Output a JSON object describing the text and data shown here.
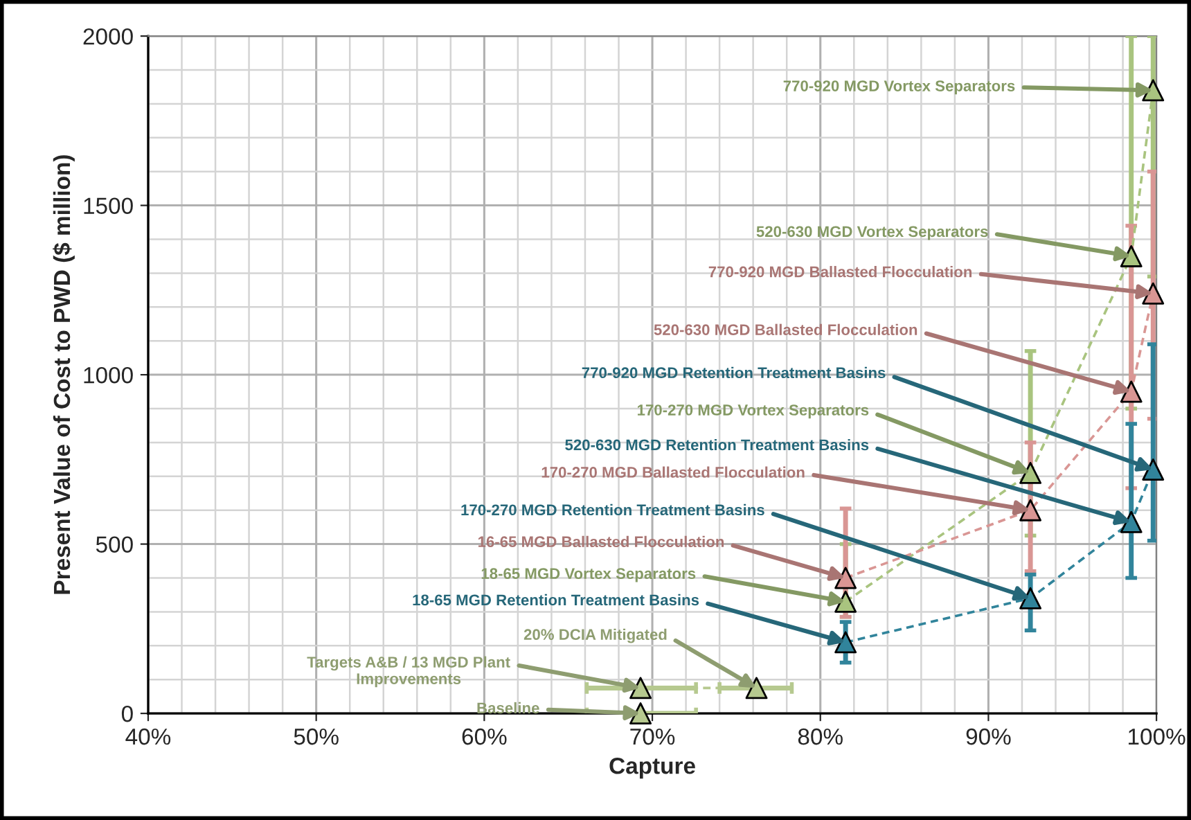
{
  "chart_data": {
    "type": "line",
    "xlabel": "Capture",
    "ylabel": "Present Value of Cost to PWD ($ million)",
    "xlim": [
      40,
      100
    ],
    "ylim": [
      0,
      2000
    ],
    "xticks": [
      {
        "value": 40,
        "label": "40%"
      },
      {
        "value": 50,
        "label": "50%"
      },
      {
        "value": 60,
        "label": "60%"
      },
      {
        "value": 70,
        "label": "70%"
      },
      {
        "value": 80,
        "label": "80%"
      },
      {
        "value": 90,
        "label": "90%"
      },
      {
        "value": 100,
        "label": "100%"
      }
    ],
    "yticks": [
      0,
      500,
      1000,
      1500,
      2000
    ],
    "grid": true,
    "marker": "triangle",
    "line_style": "dashed",
    "series": [
      {
        "type": "scatter",
        "color": "#b6c98f",
        "x": [
          69.3
        ],
        "values": [
          0
        ],
        "xerrors": [
          [
            66.1,
            72.6
          ]
        ]
      },
      {
        "type": "line",
        "color": "#b6c98f",
        "x": [
          69.3,
          76.2
        ],
        "values": [
          75,
          75
        ],
        "xerrors": [
          [
            66.1,
            72.6
          ],
          [
            74.0,
            78.3
          ]
        ]
      },
      {
        "color": "#a9c47f",
        "x": [
          81.5,
          92.5,
          98.5,
          99.8
        ],
        "values": [
          330,
          710,
          1350,
          1840
        ],
        "errors": [
          [
            285,
            500
          ],
          [
            525,
            1070
          ],
          [
            900,
            2000
          ],
          [
            1290,
            2000
          ]
        ]
      },
      {
        "color": "#d99694",
        "x": [
          81.5,
          92.5,
          98.5,
          99.8
        ],
        "values": [
          400,
          600,
          950,
          1240
        ],
        "errors": [
          [
            285,
            605
          ],
          [
            420,
            800
          ],
          [
            665,
            1440
          ],
          [
            870,
            1600
          ]
        ]
      },
      {
        "color": "#31849b",
        "x": [
          81.5,
          92.5,
          98.5,
          99.8
        ],
        "values": [
          210,
          340,
          565,
          720
        ],
        "errors": [
          [
            150,
            270
          ],
          [
            245,
            410
          ],
          [
            400,
            855
          ],
          [
            510,
            1090
          ]
        ]
      }
    ],
    "annotations": [
      {
        "text": "770-920 MGD Vortex Separators",
        "x": 99.8,
        "y": 1840
      },
      {
        "text": "520-630 MGD Vortex Separators",
        "x": 98.5,
        "y": 1350
      },
      {
        "text": "770-920 MGD Ballasted Flocculation",
        "x": 99.8,
        "y": 1240
      },
      {
        "text": "520-630 MGD Ballasted Flocculation",
        "x": 98.5,
        "y": 950
      },
      {
        "text": "770-920 MGD Retention Treatment Basins",
        "x": 99.8,
        "y": 720
      },
      {
        "text": "170-270 MGD Vortex Separators",
        "x": 92.5,
        "y": 710
      },
      {
        "text": "520-630 MGD Retention Treatment Basins",
        "x": 98.5,
        "y": 565
      },
      {
        "text": "170-270 MGD Ballasted Flocculation",
        "x": 92.5,
        "y": 600
      },
      {
        "text": "170-270 MGD Retention Treatment Basins",
        "x": 92.5,
        "y": 340
      },
      {
        "text": "16-65 MGD Ballasted Flocculation",
        "x": 81.5,
        "y": 400
      },
      {
        "text": "18-65 MGD Vortex Separators",
        "x": 81.5,
        "y": 330
      },
      {
        "text": "18-65 MGD Retention Treatment Basins",
        "x": 81.5,
        "y": 210
      },
      {
        "text": "20% DCIA Mitigated",
        "x": 76.2,
        "y": 75
      },
      {
        "text": "Targets A&B / 13 MGD Plant\nImprovements",
        "x": 69.3,
        "y": 75
      },
      {
        "text": "Baseline",
        "x": 69.3,
        "y": 0
      }
    ]
  }
}
